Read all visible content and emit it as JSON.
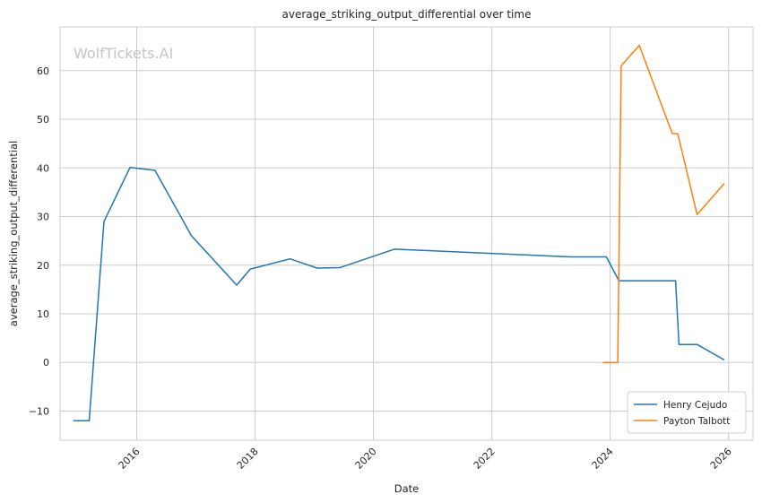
{
  "chart_data": {
    "type": "line",
    "title": "average_striking_output_differential over time",
    "xlabel": "Date",
    "ylabel": "average_striking_output_differential",
    "watermark": "WolfTickets.AI",
    "x_ticks": [
      "2016",
      "2018",
      "2020",
      "2022",
      "2024",
      "2026"
    ],
    "y_ticks": [
      -10,
      0,
      10,
      20,
      30,
      40,
      50,
      60
    ],
    "ylim": [
      -16,
      69
    ],
    "xlim": [
      "2014-09-15",
      "2026-06-01"
    ],
    "grid": true,
    "legend_position": "bottom-right",
    "series": [
      {
        "name": "Henry Cejudo",
        "color": "#1f77b4",
        "points": [
          [
            "2014-12-06",
            -12.0
          ],
          [
            "2015-03-14",
            -12.0
          ],
          [
            "2015-06-13",
            29.0
          ],
          [
            "2015-11-21",
            40.1
          ],
          [
            "2016-04-23",
            39.5
          ],
          [
            "2016-12-03",
            26.1
          ],
          [
            "2017-09-09",
            15.9
          ],
          [
            "2017-12-02",
            19.2
          ],
          [
            "2018-08-04",
            21.3
          ],
          [
            "2019-01-19",
            19.4
          ],
          [
            "2019-06-08",
            19.5
          ],
          [
            "2020-05-09",
            23.3
          ],
          [
            "2023-05-06",
            21.7
          ],
          [
            "2023-12-09",
            21.7
          ],
          [
            "2024-02-24",
            16.8
          ],
          [
            "2025-02-08",
            16.8
          ],
          [
            "2025-03-01",
            3.7
          ],
          [
            "2025-06-21",
            3.7
          ],
          [
            "2025-12-06",
            0.5
          ]
        ]
      },
      {
        "name": "Payton Talbott",
        "color": "#ff7f0e",
        "points": [
          [
            "2023-11-18",
            0.0
          ],
          [
            "2024-02-17",
            0.0
          ],
          [
            "2024-03-09",
            61.0
          ],
          [
            "2024-06-29",
            65.2
          ],
          [
            "2025-01-18",
            47.1
          ],
          [
            "2025-02-22",
            47.0
          ],
          [
            "2025-06-21",
            30.4
          ],
          [
            "2025-12-06",
            36.8
          ]
        ]
      }
    ]
  }
}
